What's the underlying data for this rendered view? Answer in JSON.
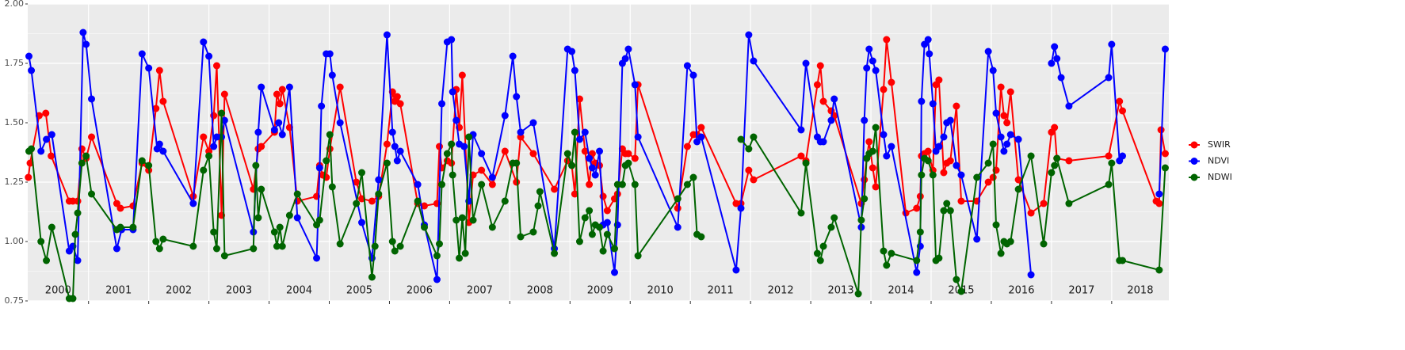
{
  "chart_data": {
    "type": "line",
    "xlim": [
      1999.99,
      2018.95
    ],
    "xticks": [
      2001,
      2002,
      2003,
      2004,
      2005,
      2006,
      2007,
      2008,
      2009,
      2010,
      2011,
      2012,
      2013,
      2014,
      2015,
      2016,
      2017,
      2018
    ],
    "year_labels": [
      "2000",
      "2001",
      "2002",
      "2003",
      "2004",
      "2005",
      "2006",
      "2007",
      "2008",
      "2009",
      "2010",
      "2011",
      "2012",
      "2013",
      "2014",
      "2015",
      "2016",
      "2017",
      "2018"
    ],
    "ylim": [
      0.75,
      2.0
    ],
    "yticks": [
      0.75,
      {
        "value": 1,
        "label": "1.00"
      },
      1.25,
      {
        "value": 1.5,
        "label": "1.50"
      },
      1.75,
      {
        "value": 2,
        "label": "2.00"
      }
    ],
    "grid": true,
    "legend": "right",
    "series": [
      {
        "name": "SWIR",
        "color": "#ff0000",
        "x": [
          2000.0,
          2000.03,
          2000.18,
          2000.29,
          2000.38,
          2000.68,
          2000.74,
          2000.82,
          2000.89,
          2000.96,
          2001.05,
          2001.47,
          2001.53,
          2001.74,
          2001.89,
          2002.0,
          2002.12,
          2002.18,
          2002.24,
          2002.74,
          2002.91,
          2003.0,
          2003.08,
          2003.13,
          2003.21,
          2003.26,
          2003.74,
          2003.82,
          2003.87,
          2004.09,
          2004.13,
          2004.18,
          2004.22,
          2004.34,
          2004.47,
          2004.79,
          2004.84,
          2004.89,
          2004.95,
          2005.01,
          2005.18,
          2005.45,
          2005.54,
          2005.71,
          2005.82,
          2005.96,
          2006.05,
          2006.09,
          2006.13,
          2006.18,
          2006.47,
          2006.58,
          2006.79,
          2006.83,
          2006.87,
          2006.96,
          2007.03,
          2007.11,
          2007.16,
          2007.21,
          2007.32,
          2007.39,
          2007.53,
          2007.71,
          2007.92,
          2008.11,
          2008.18,
          2008.39,
          2008.74,
          2008.96,
          2009.03,
          2009.08,
          2009.16,
          2009.25,
          2009.32,
          2009.37,
          2009.42,
          2009.49,
          2009.55,
          2009.62,
          2009.74,
          2009.79,
          2009.87,
          2009.92,
          2009.97,
          2010.08,
          2010.13,
          2010.79,
          2010.95,
          2011.05,
          2011.11,
          2011.18,
          2011.76,
          2011.84,
          2011.97,
          2012.05,
          2012.84,
          2012.92,
          2013.11,
          2013.16,
          2013.21,
          2013.34,
          2013.39,
          2013.84,
          2013.89,
          2013.93,
          2013.97,
          2014.03,
          2014.08,
          2014.21,
          2014.26,
          2014.34,
          2014.58,
          2014.76,
          2014.82,
          2014.84,
          2014.89,
          2014.95,
          2015.03,
          2015.08,
          2015.13,
          2015.21,
          2015.26,
          2015.32,
          2015.42,
          2015.5,
          2015.76,
          2015.95,
          2016.03,
          2016.08,
          2016.16,
          2016.21,
          2016.26,
          2016.32,
          2016.45,
          2016.66,
          2016.87,
          2017.0,
          2017.05,
          2017.09,
          2017.29,
          2017.95,
          2018.13,
          2018.18,
          2018.74,
          2018.79,
          2018.82,
          2018.89
        ],
        "values": [
          1.27,
          1.33,
          1.53,
          1.54,
          1.36,
          1.17,
          1.17,
          1.17,
          1.39,
          1.35,
          1.44,
          1.16,
          1.14,
          1.15,
          1.33,
          1.3,
          1.56,
          1.72,
          1.59,
          1.19,
          1.44,
          1.38,
          1.53,
          1.74,
          1.11,
          1.62,
          1.22,
          1.39,
          1.4,
          1.46,
          1.62,
          1.58,
          1.64,
          1.48,
          1.17,
          1.19,
          1.32,
          1.28,
          1.27,
          1.39,
          1.65,
          1.25,
          1.18,
          1.17,
          1.19,
          1.41,
          1.63,
          1.59,
          1.61,
          1.58,
          1.16,
          1.15,
          1.16,
          1.4,
          1.31,
          1.34,
          1.33,
          1.64,
          1.48,
          1.7,
          1.08,
          1.28,
          1.3,
          1.24,
          1.38,
          1.25,
          1.44,
          1.37,
          1.22,
          1.34,
          1.32,
          1.2,
          1.6,
          1.38,
          1.24,
          1.37,
          1.33,
          1.32,
          1.19,
          1.13,
          1.18,
          1.2,
          1.39,
          1.37,
          1.37,
          1.35,
          1.66,
          1.14,
          1.4,
          1.45,
          1.45,
          1.48,
          1.16,
          1.16,
          1.3,
          1.26,
          1.36,
          1.34,
          1.66,
          1.74,
          1.59,
          1.55,
          1.53,
          1.16,
          1.26,
          1.35,
          1.42,
          1.31,
          1.23,
          1.64,
          1.85,
          1.67,
          1.12,
          1.14,
          1.19,
          1.36,
          1.37,
          1.38,
          1.3,
          1.66,
          1.68,
          1.29,
          1.33,
          1.34,
          1.57,
          1.17,
          1.17,
          1.25,
          1.27,
          1.3,
          1.65,
          1.53,
          1.5,
          1.63,
          1.26,
          1.12,
          1.16,
          1.46,
          1.48,
          1.35,
          1.34,
          1.36,
          1.59,
          1.55,
          1.17,
          1.16,
          1.47,
          1.37
        ]
      },
      {
        "name": "NDVI",
        "color": "#0000ff",
        "x": [
          2000.01,
          2000.05,
          2000.21,
          2000.3,
          2000.39,
          2000.68,
          2000.74,
          2000.82,
          2000.91,
          2000.96,
          2001.05,
          2001.47,
          2001.55,
          2001.74,
          2001.89,
          2002.0,
          2002.14,
          2002.18,
          2002.24,
          2002.74,
          2002.91,
          2003.0,
          2003.08,
          2003.13,
          2003.21,
          2003.26,
          2003.74,
          2003.82,
          2003.87,
          2004.09,
          2004.16,
          2004.22,
          2004.34,
          2004.47,
          2004.79,
          2004.84,
          2004.87,
          2004.95,
          2005.01,
          2005.05,
          2005.18,
          2005.54,
          2005.71,
          2005.82,
          2005.96,
          2006.05,
          2006.09,
          2006.13,
          2006.18,
          2006.47,
          2006.58,
          2006.79,
          2006.87,
          2006.96,
          2007.03,
          2007.05,
          2007.11,
          2007.16,
          2007.24,
          2007.32,
          2007.39,
          2007.53,
          2007.71,
          2007.92,
          2008.05,
          2008.11,
          2008.18,
          2008.39,
          2008.74,
          2008.96,
          2009.03,
          2009.08,
          2009.16,
          2009.25,
          2009.32,
          2009.37,
          2009.42,
          2009.49,
          2009.55,
          2009.62,
          2009.74,
          2009.79,
          2009.87,
          2009.92,
          2009.97,
          2010.08,
          2010.13,
          2010.79,
          2010.95,
          2011.05,
          2011.11,
          2011.18,
          2011.76,
          2011.84,
          2011.97,
          2012.05,
          2012.84,
          2012.92,
          2013.11,
          2013.16,
          2013.21,
          2013.34,
          2013.39,
          2013.84,
          2013.89,
          2013.93,
          2013.97,
          2014.03,
          2014.08,
          2014.21,
          2014.26,
          2014.34,
          2014.76,
          2014.82,
          2014.84,
          2014.89,
          2014.95,
          2014.97,
          2015.03,
          2015.08,
          2015.13,
          2015.21,
          2015.26,
          2015.32,
          2015.42,
          2015.5,
          2015.76,
          2015.95,
          2016.03,
          2016.08,
          2016.16,
          2016.21,
          2016.26,
          2016.32,
          2016.45,
          2016.66,
          null,
          2017.0,
          2017.05,
          2017.09,
          2017.16,
          2017.29,
          2017.95,
          2018.0,
          2018.13,
          2018.18,
          null,
          2018.79,
          2018.89
        ],
        "values": [
          1.78,
          1.72,
          1.38,
          1.43,
          1.45,
          0.96,
          0.98,
          0.92,
          1.88,
          1.83,
          1.6,
          0.97,
          1.05,
          1.05,
          1.79,
          1.73,
          1.39,
          1.41,
          1.38,
          1.16,
          1.84,
          1.78,
          1.4,
          1.44,
          1.44,
          1.51,
          1.04,
          1.46,
          1.65,
          1.47,
          1.5,
          1.45,
          1.65,
          1.1,
          0.93,
          1.31,
          1.57,
          1.79,
          1.79,
          1.7,
          1.5,
          1.08,
          0.93,
          1.26,
          1.87,
          1.46,
          1.4,
          1.34,
          1.38,
          1.24,
          1.07,
          0.84,
          1.58,
          1.84,
          1.85,
          1.63,
          1.51,
          1.41,
          1.4,
          1.17,
          1.45,
          1.37,
          1.27,
          1.53,
          1.78,
          1.61,
          1.46,
          1.5,
          0.97,
          1.81,
          1.8,
          1.72,
          1.43,
          1.46,
          1.35,
          1.31,
          1.28,
          1.38,
          1.07,
          1.08,
          0.87,
          1.07,
          1.75,
          1.77,
          1.81,
          1.66,
          1.44,
          1.06,
          1.74,
          1.7,
          1.42,
          1.44,
          0.88,
          1.14,
          1.87,
          1.76,
          1.47,
          1.75,
          1.44,
          1.42,
          1.42,
          1.51,
          1.6,
          1.06,
          1.51,
          1.73,
          1.81,
          1.76,
          1.72,
          1.45,
          1.36,
          1.4,
          0.87,
          0.98,
          1.59,
          1.83,
          1.85,
          1.79,
          1.58,
          1.38,
          1.4,
          1.44,
          1.5,
          1.51,
          1.32,
          1.28,
          1.01,
          1.8,
          1.72,
          1.54,
          1.44,
          1.38,
          1.41,
          1.45,
          1.43,
          0.86,
          null,
          1.75,
          1.82,
          1.77,
          1.69,
          1.57,
          1.69,
          1.83,
          1.34,
          1.36,
          null,
          1.2,
          1.81
        ]
      },
      {
        "name": "NDWI",
        "color": "#006400",
        "x": [
          2000.01,
          2000.05,
          2000.21,
          2000.3,
          2000.39,
          2000.68,
          2000.74,
          2000.78,
          2000.82,
          2000.89,
          2000.96,
          2001.05,
          2001.47,
          2001.53,
          2001.74,
          2001.89,
          2002.0,
          2002.12,
          2002.18,
          2002.24,
          2002.74,
          2002.91,
          2003.0,
          2003.08,
          2003.13,
          2003.21,
          2003.26,
          2003.74,
          2003.78,
          2003.82,
          2003.87,
          2004.09,
          2004.13,
          2004.18,
          2004.22,
          2004.34,
          2004.47,
          2004.79,
          2004.84,
          2004.95,
          2005.01,
          2005.05,
          2005.18,
          2005.45,
          2005.54,
          2005.71,
          2005.76,
          2005.82,
          2005.96,
          2006.05,
          2006.09,
          2006.18,
          2006.47,
          2006.58,
          2006.79,
          2006.83,
          2006.87,
          2006.96,
          2007.03,
          2007.05,
          2007.11,
          2007.16,
          2007.21,
          2007.26,
          2007.32,
          2007.39,
          2007.53,
          2007.71,
          2007.92,
          2008.05,
          2008.11,
          2008.18,
          2008.39,
          2008.47,
          2008.5,
          2008.74,
          2008.96,
          2009.03,
          2009.08,
          2009.16,
          2009.25,
          2009.32,
          2009.37,
          2009.42,
          2009.49,
          2009.55,
          2009.62,
          2009.74,
          2009.79,
          2009.87,
          2009.92,
          2009.97,
          2010.08,
          2010.13,
          2010.79,
          2010.95,
          2011.05,
          2011.11,
          2011.18,
          null,
          2011.84,
          2011.97,
          2012.05,
          2012.84,
          2012.92,
          2013.11,
          2013.16,
          2013.21,
          2013.34,
          2013.39,
          2013.79,
          2013.84,
          2013.89,
          2013.93,
          2013.97,
          2014.03,
          2014.08,
          2014.21,
          2014.26,
          2014.34,
          2014.76,
          2014.82,
          2014.84,
          2014.89,
          2014.95,
          2015.03,
          2015.08,
          2015.13,
          2015.21,
          2015.26,
          2015.32,
          2015.42,
          2015.5,
          2015.76,
          2015.95,
          2016.03,
          2016.08,
          2016.16,
          2016.21,
          2016.26,
          2016.32,
          2016.45,
          2016.66,
          2016.87,
          2017.0,
          2017.05,
          2017.09,
          2017.29,
          2017.95,
          2018.0,
          2018.13,
          2018.18,
          2018.79,
          2018.89
        ],
        "values": [
          1.38,
          1.39,
          1.0,
          0.92,
          1.06,
          0.76,
          0.76,
          1.03,
          1.12,
          1.33,
          1.36,
          1.2,
          1.05,
          1.06,
          1.06,
          1.34,
          1.32,
          1.0,
          0.97,
          1.01,
          0.98,
          1.3,
          1.36,
          1.04,
          0.97,
          1.54,
          0.94,
          0.97,
          1.32,
          1.1,
          1.22,
          1.04,
          0.98,
          1.06,
          0.98,
          1.11,
          1.2,
          1.07,
          1.09,
          1.34,
          1.45,
          1.23,
          0.99,
          1.16,
          1.29,
          0.85,
          0.98,
          1.2,
          1.33,
          1.0,
          0.96,
          0.98,
          1.17,
          1.06,
          0.94,
          0.99,
          1.24,
          1.37,
          1.41,
          1.28,
          1.09,
          0.93,
          1.1,
          0.95,
          1.44,
          1.09,
          1.24,
          1.06,
          1.17,
          1.33,
          1.33,
          1.02,
          1.04,
          1.15,
          1.21,
          0.95,
          1.37,
          1.32,
          1.46,
          1.0,
          1.1,
          1.13,
          1.03,
          1.07,
          1.06,
          0.96,
          1.03,
          0.97,
          1.24,
          1.24,
          1.32,
          1.33,
          1.24,
          0.94,
          1.18,
          1.24,
          1.27,
          1.03,
          1.02,
          null,
          1.43,
          1.39,
          1.44,
          1.12,
          1.33,
          0.95,
          0.92,
          0.98,
          1.06,
          1.1,
          0.78,
          1.09,
          1.18,
          1.35,
          1.37,
          1.38,
          1.48,
          0.96,
          0.9,
          0.95,
          0.92,
          1.04,
          1.28,
          1.35,
          1.34,
          1.28,
          0.92,
          0.93,
          1.13,
          1.16,
          1.13,
          0.84,
          0.79,
          1.27,
          1.33,
          1.41,
          1.07,
          0.95,
          1.0,
          0.99,
          1.0,
          1.22,
          1.36,
          0.99,
          1.29,
          1.32,
          1.35,
          1.16,
          1.24,
          1.33,
          0.92,
          0.92,
          0.88,
          1.31
        ]
      }
    ]
  }
}
